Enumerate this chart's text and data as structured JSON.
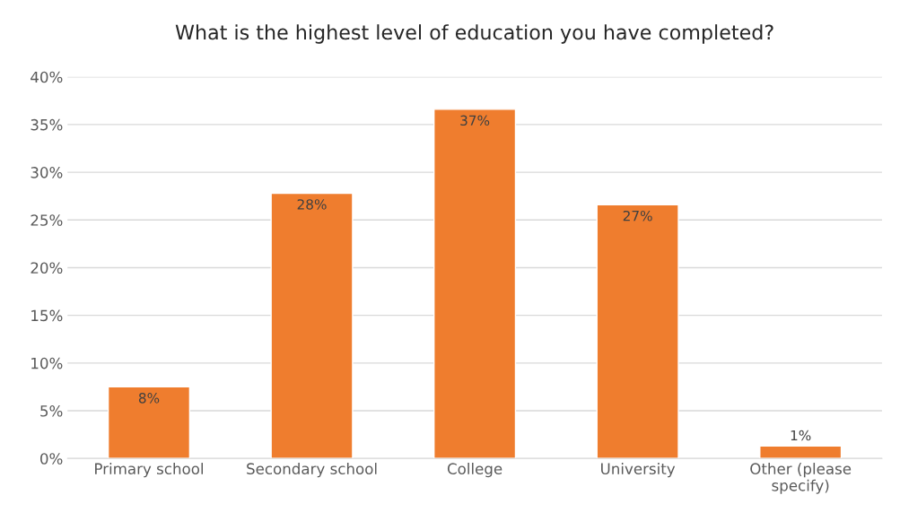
{
  "chart_data": {
    "type": "bar",
    "title": "What is the highest level of education you have completed?",
    "categories": [
      "Primary school",
      "Secondary school",
      "College",
      "University",
      "Other (please\nspecify)"
    ],
    "values": [
      7.5,
      27.8,
      36.6,
      26.6,
      1.3
    ],
    "value_labels": [
      "8%",
      "28%",
      "37%",
      "27%",
      "1%"
    ],
    "color": "#ef7d2e",
    "ylim": [
      0,
      40
    ],
    "yticks": [
      {
        "value": 0,
        "label": "0%"
      },
      {
        "value": 5,
        "label": "5%"
      },
      {
        "value": 10,
        "label": "10%"
      },
      {
        "value": 15,
        "label": "15%"
      },
      {
        "value": 20,
        "label": "20%"
      },
      {
        "value": 25,
        "label": "25%"
      },
      {
        "value": 30,
        "label": "30%"
      },
      {
        "value": 35,
        "label": "35%"
      },
      {
        "value": 40,
        "label": "40%"
      }
    ],
    "grid": "y"
  }
}
